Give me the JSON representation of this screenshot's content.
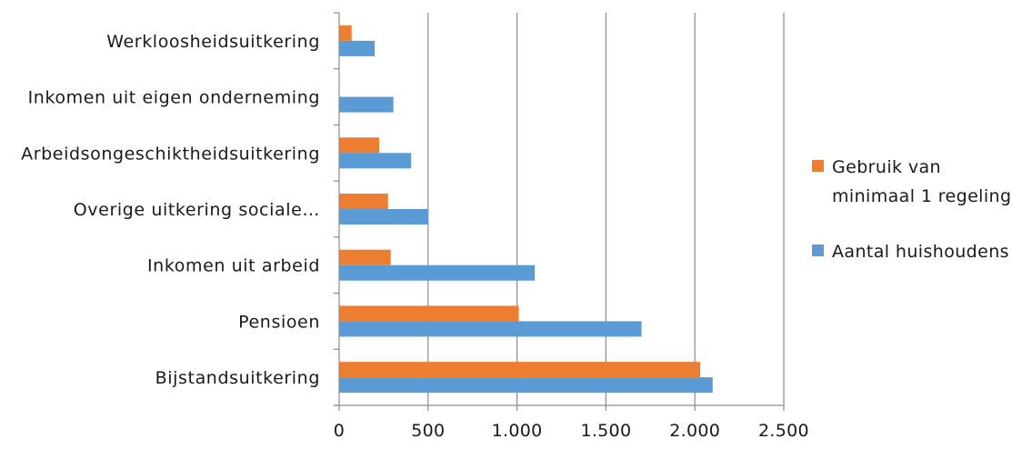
{
  "chart_data": {
    "type": "bar",
    "orientation": "horizontal",
    "title": "",
    "xlabel": "",
    "ylabel": "",
    "categories": [
      "Werkloosheidsuitkering",
      "Inkomen uit eigen onderneming",
      "Arbeidsongeschiktheidsuitkering",
      "Overige uitkering sociale…",
      "Inkomen uit arbeid",
      "Pensioen",
      "Bijstandsuitkering"
    ],
    "series": [
      {
        "name": "Gebruik van minimaal 1 regeling",
        "name_lines": [
          "Gebruik van",
          "minimaal 1 regeling"
        ],
        "color": "#ED7D31",
        "values": [
          70,
          0,
          225,
          275,
          290,
          1010,
          2030
        ]
      },
      {
        "name": "Aantal huishoudens",
        "name_lines": [
          "Aantal huishoudens"
        ],
        "color": "#5B9BD5",
        "values": [
          200,
          305,
          405,
          500,
          1100,
          1700,
          2100
        ]
      }
    ],
    "xlim": [
      0,
      2500
    ],
    "xticks": [
      0,
      500,
      1000,
      1500,
      2000,
      2500
    ],
    "xtick_labels": [
      "0",
      "500",
      "1.000",
      "1.500",
      "2.000",
      "2.500"
    ],
    "grid": "vertical major",
    "legend": "right"
  }
}
